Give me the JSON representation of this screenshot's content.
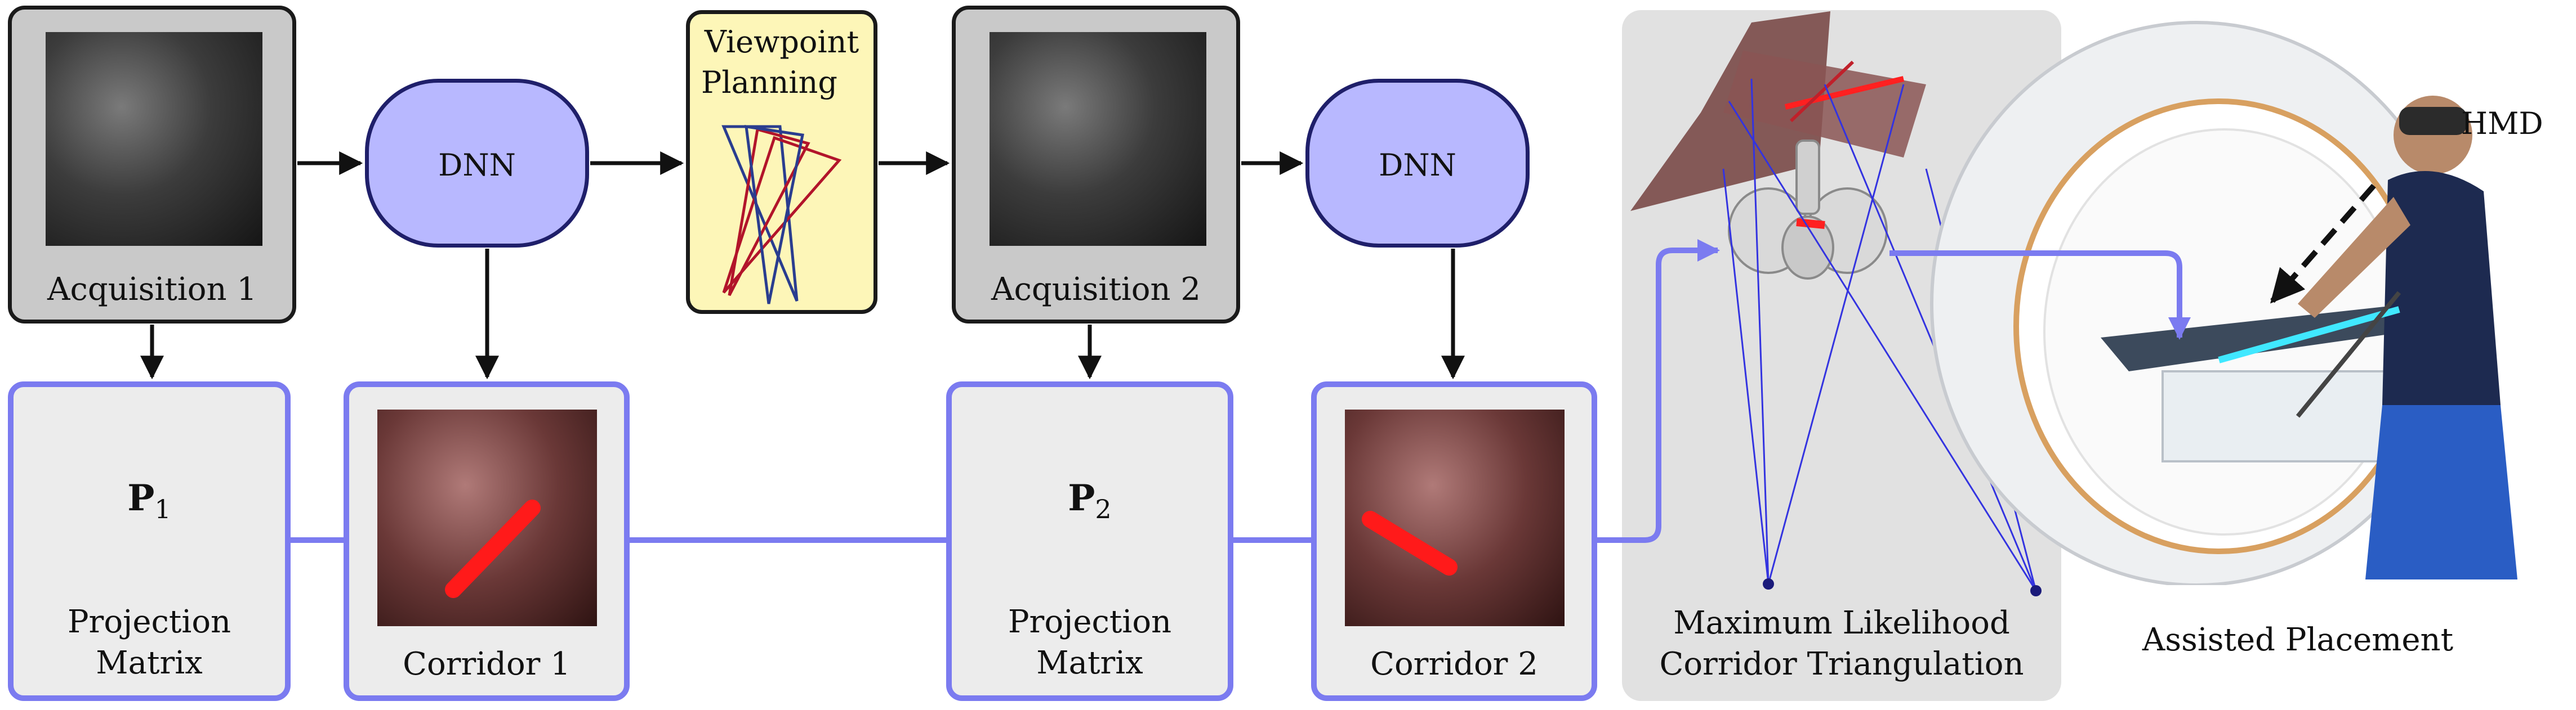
{
  "acquisition1": {
    "label": "Acquisition 1"
  },
  "acquisition2": {
    "label": "Acquisition 2"
  },
  "dnn1": {
    "label": "DNN"
  },
  "dnn2": {
    "label": "DNN"
  },
  "viewpoint": {
    "label_line1": "Viewpoint",
    "label_line2": "Planning"
  },
  "proj1": {
    "symbol": "P",
    "subscript": "1",
    "label_line1": "Projection",
    "label_line2": "Matrix"
  },
  "proj2": {
    "symbol": "P",
    "subscript": "2",
    "label_line1": "Projection",
    "label_line2": "Matrix"
  },
  "corridor1": {
    "label": "Corridor 1"
  },
  "corridor2": {
    "label": "Corridor 2"
  },
  "triangulation": {
    "label_line1": "Maximum Likelihood",
    "label_line2": "Corridor Triangulation"
  },
  "placement": {
    "label": "Assisted Placement",
    "hmd_label": "HMD"
  },
  "colors": {
    "box_border_blue": "#7b7bf0",
    "dnn_fill": "#b8b8ff",
    "viewpoint_fill": "#fdf6b8",
    "corridor_red": "#ff1a1a"
  }
}
